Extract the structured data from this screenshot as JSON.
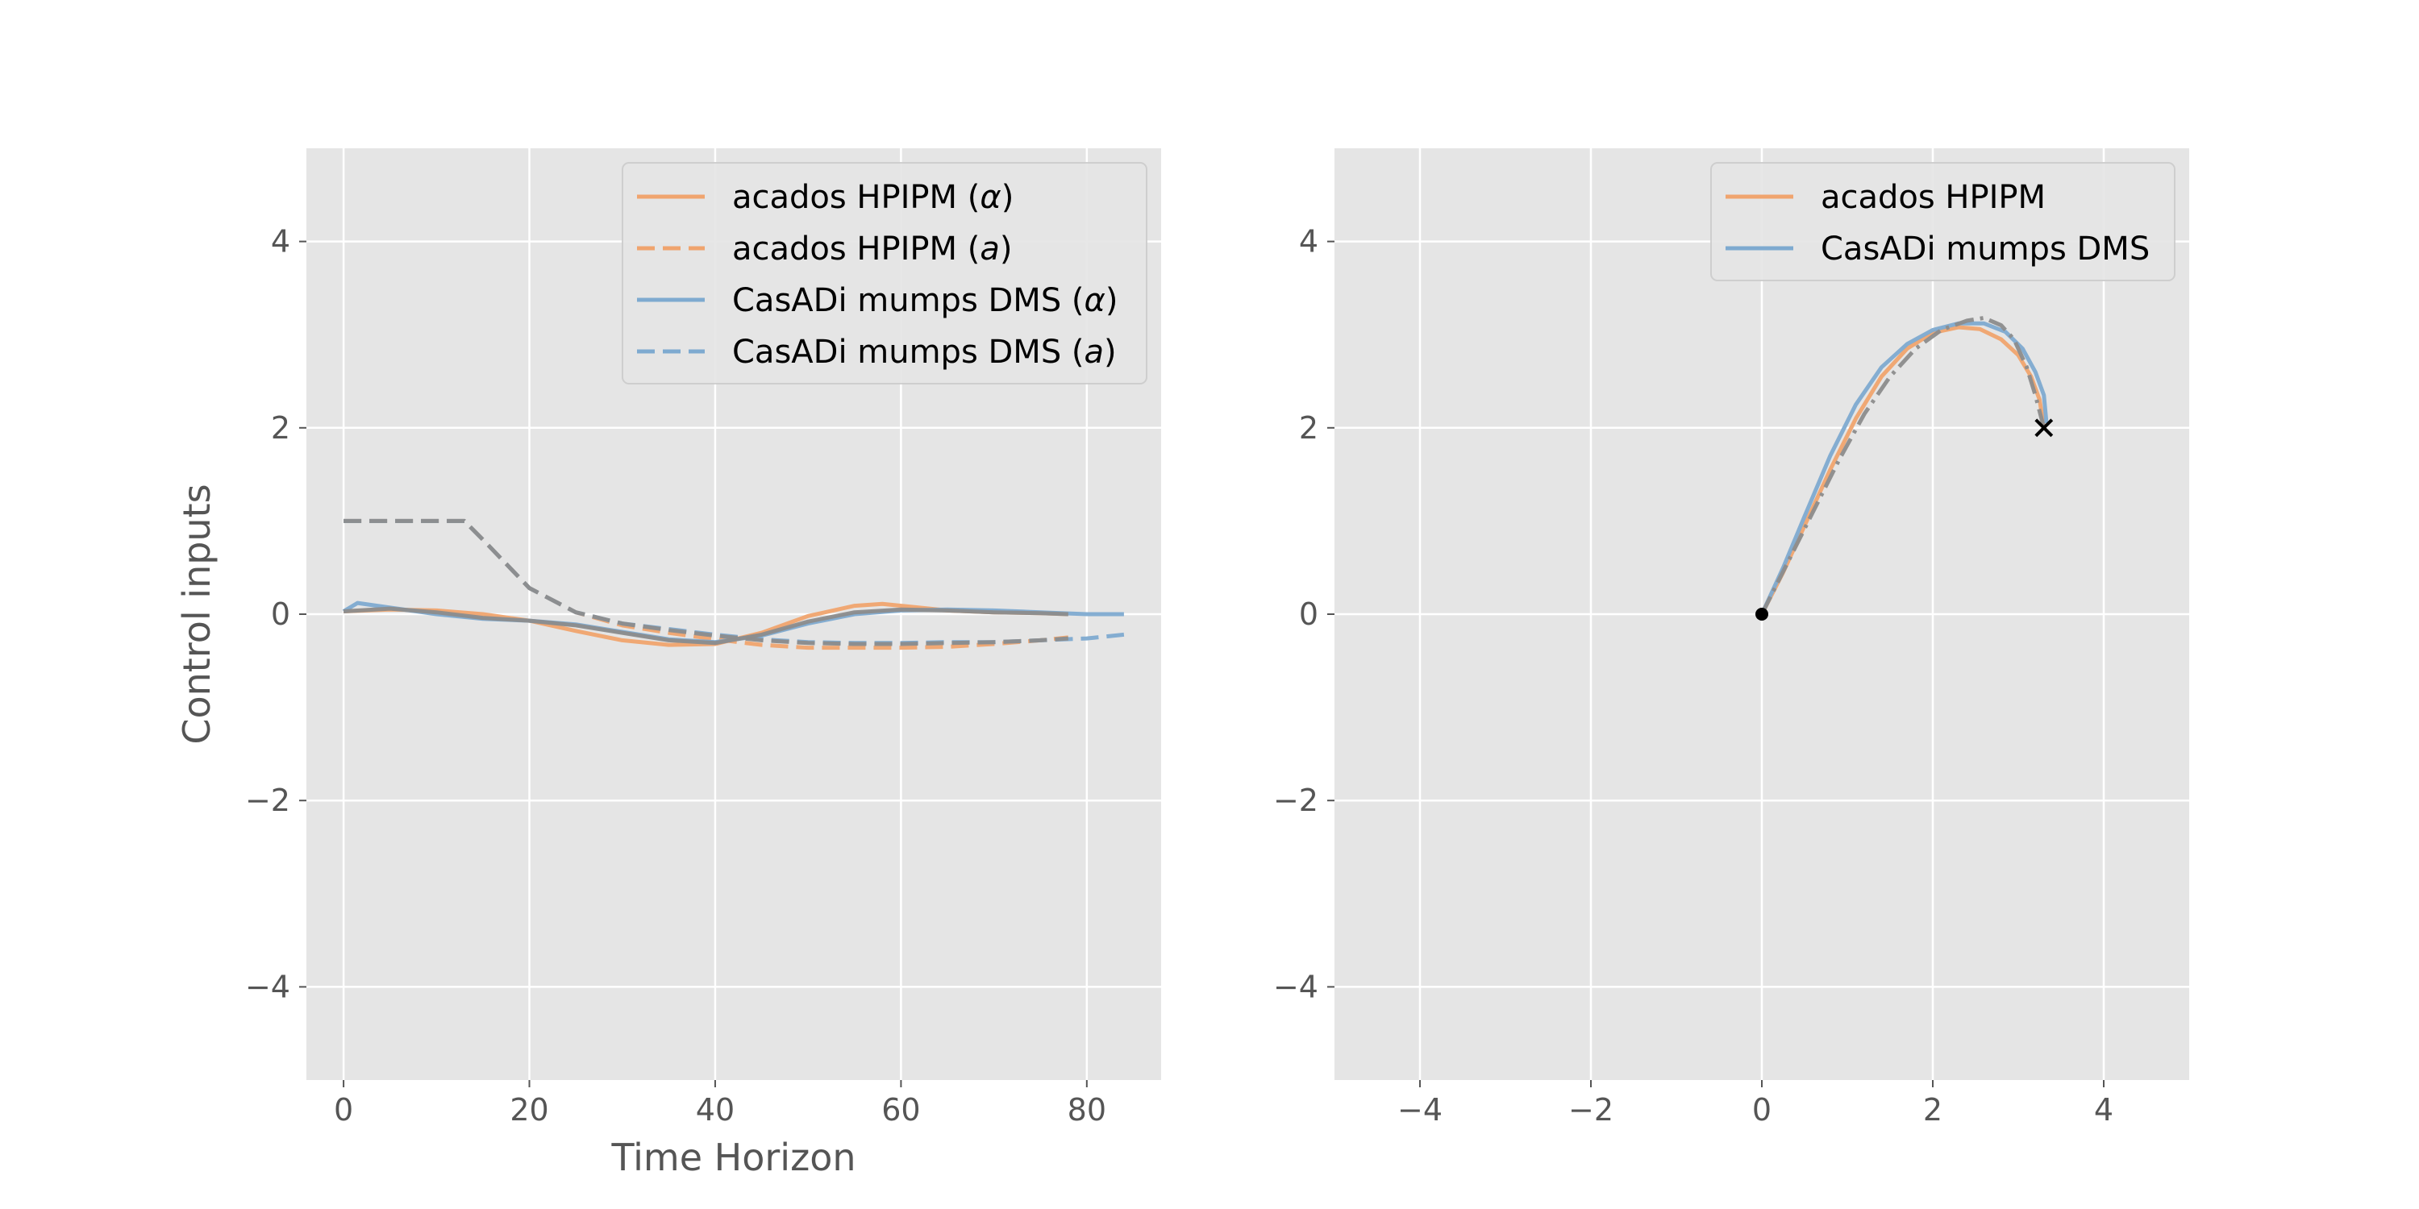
{
  "chart_data": [
    {
      "type": "line",
      "title": "",
      "xlabel": "Time Horizon",
      "ylabel": "Control inputs",
      "xlim": [
        -4,
        88
      ],
      "ylim": [
        -5,
        5
      ],
      "xticks": [
        0,
        20,
        40,
        60,
        80
      ],
      "yticks": [
        -4,
        -2,
        0,
        2,
        4
      ],
      "grid": true,
      "legend_position": "top-right",
      "series": [
        {
          "name": "acados HPIPM (α)",
          "color": "#f0a46e",
          "style": "solid",
          "x": [
            0,
            5,
            10,
            15,
            20,
            25,
            30,
            35,
            40,
            45,
            50,
            55,
            58,
            62,
            65,
            70,
            75,
            78
          ],
          "y": [
            0.03,
            0.05,
            0.04,
            0.0,
            -0.07,
            -0.18,
            -0.28,
            -0.33,
            -0.32,
            -0.2,
            -0.02,
            0.09,
            0.11,
            0.07,
            0.04,
            0.02,
            0.01,
            0.0
          ]
        },
        {
          "name": "acados HPIPM (a)",
          "color": "#f0a46e",
          "style": "dashed",
          "x": [
            0,
            5,
            10,
            13,
            15,
            20,
            25,
            30,
            35,
            40,
            45,
            50,
            55,
            60,
            65,
            70,
            75,
            78
          ],
          "y": [
            1.0,
            1.0,
            1.0,
            1.0,
            0.8,
            0.28,
            0.02,
            -0.12,
            -0.2,
            -0.27,
            -0.33,
            -0.36,
            -0.36,
            -0.36,
            -0.35,
            -0.32,
            -0.28,
            -0.25
          ]
        },
        {
          "name": "CasADi mumps DMS (α)",
          "color": "#7eaad0",
          "style": "solid",
          "x": [
            0,
            1.5,
            5,
            10,
            15,
            20,
            25,
            30,
            35,
            40,
            45,
            50,
            55,
            60,
            65,
            70,
            75,
            80,
            84
          ],
          "y": [
            0.03,
            0.12,
            0.07,
            0.0,
            -0.05,
            -0.07,
            -0.11,
            -0.19,
            -0.27,
            -0.3,
            -0.23,
            -0.1,
            0.0,
            0.04,
            0.05,
            0.04,
            0.02,
            0.0,
            0.0
          ]
        },
        {
          "name": "CasADi mumps DMS (a)",
          "color": "#7eaad0",
          "style": "dashed",
          "x": [
            0,
            5,
            10,
            13,
            15,
            20,
            25,
            30,
            35,
            40,
            45,
            50,
            55,
            60,
            65,
            70,
            75,
            80,
            84
          ],
          "y": [
            1.0,
            1.0,
            1.0,
            1.0,
            0.8,
            0.28,
            0.02,
            -0.1,
            -0.16,
            -0.22,
            -0.27,
            -0.3,
            -0.31,
            -0.31,
            -0.3,
            -0.3,
            -0.28,
            -0.26,
            -0.22
          ]
        },
        {
          "name": "",
          "color": "#8c8c8c",
          "style": "dashed",
          "x": [
            0,
            5,
            10,
            13,
            15,
            20,
            25,
            30,
            35,
            40,
            45,
            50,
            55,
            60,
            65,
            70,
            75,
            78
          ],
          "y": [
            1.0,
            1.0,
            1.0,
            1.0,
            0.8,
            0.28,
            0.02,
            -0.1,
            -0.17,
            -0.23,
            -0.28,
            -0.31,
            -0.32,
            -0.32,
            -0.31,
            -0.3,
            -0.28,
            -0.26
          ]
        },
        {
          "name": "",
          "color": "#8c8c8c",
          "style": "solid",
          "x": [
            0,
            5,
            10,
            15,
            20,
            25,
            30,
            35,
            40,
            45,
            50,
            55,
            60,
            65,
            70,
            75,
            78
          ],
          "y": [
            0.03,
            0.06,
            0.02,
            -0.04,
            -0.07,
            -0.12,
            -0.2,
            -0.28,
            -0.31,
            -0.22,
            -0.08,
            0.02,
            0.05,
            0.04,
            0.02,
            0.01,
            0.0
          ]
        }
      ]
    },
    {
      "type": "line",
      "title": "",
      "xlabel": "",
      "ylabel": "",
      "xlim": [
        -5,
        5
      ],
      "ylim": [
        -5,
        5
      ],
      "xticks": [
        -4,
        -2,
        0,
        2,
        4
      ],
      "yticks": [
        -4,
        -2,
        0,
        2,
        4
      ],
      "grid": true,
      "legend_position": "top-right",
      "series": [
        {
          "name": "acados HPIPM",
          "color": "#f0a46e",
          "style": "solid",
          "x": [
            0,
            0.25,
            0.5,
            0.8,
            1.1,
            1.4,
            1.7,
            2.0,
            2.3,
            2.55,
            2.8,
            3.0,
            3.15,
            3.25,
            3.3
          ],
          "y": [
            0,
            0.45,
            0.95,
            1.55,
            2.1,
            2.55,
            2.85,
            3.02,
            3.08,
            3.06,
            2.95,
            2.78,
            2.55,
            2.3,
            2.0
          ]
        },
        {
          "name": "CasADi mumps DMS",
          "color": "#7eaad0",
          "style": "solid",
          "x": [
            0,
            0.25,
            0.5,
            0.8,
            1.1,
            1.4,
            1.7,
            2.0,
            2.3,
            2.6,
            2.85,
            3.05,
            3.2,
            3.3,
            3.33
          ],
          "y": [
            0,
            0.5,
            1.05,
            1.7,
            2.25,
            2.65,
            2.9,
            3.05,
            3.12,
            3.12,
            3.03,
            2.85,
            2.6,
            2.35,
            2.05
          ]
        },
        {
          "name": "",
          "color": "#8c8c8c",
          "style": "dashdot",
          "x": [
            0,
            0.3,
            0.6,
            0.9,
            1.2,
            1.5,
            1.8,
            2.1,
            2.4,
            2.6,
            2.8,
            2.95,
            3.1,
            3.2,
            3.3
          ],
          "y": [
            0,
            0.55,
            1.1,
            1.65,
            2.15,
            2.55,
            2.85,
            3.05,
            3.15,
            3.18,
            3.1,
            2.95,
            2.65,
            2.35,
            2.0
          ]
        }
      ],
      "markers": [
        {
          "name": "start",
          "x": 0,
          "y": 0,
          "shape": "dot"
        },
        {
          "name": "goal",
          "x": 3.3,
          "y": 2.0,
          "shape": "x"
        }
      ]
    }
  ]
}
